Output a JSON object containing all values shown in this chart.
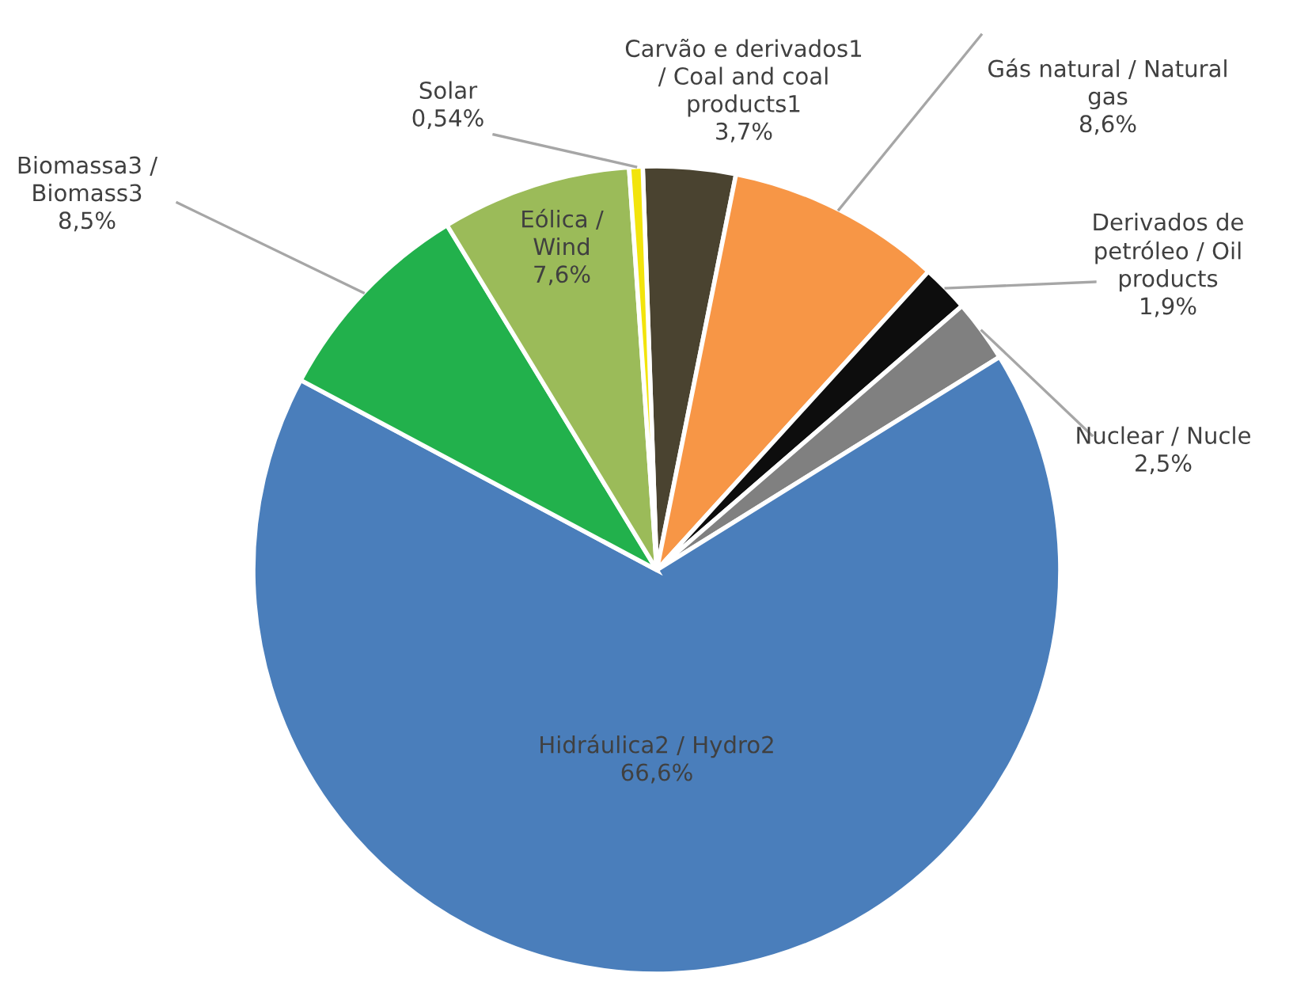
{
  "chart_data": {
    "type": "pie",
    "categories": [
      "Carvão e derivados1\n/ Coal and coal\nproducts1",
      "Gás natural / Natural\ngas",
      "Derivados de\npetróleo / Oil\nproducts",
      "Nuclear / Nucle",
      "Hidráulica2 / Hydro2",
      "Biomassa3 /\nBiomass3",
      "Eólica /\nWind",
      "Solar"
    ],
    "values": [
      3.7,
      8.6,
      1.9,
      2.5,
      66.6,
      8.5,
      7.6,
      0.54
    ],
    "value_labels": [
      "3,7%",
      "8,6%",
      "1,9%",
      "2,5%",
      "66,6%",
      "8,5%",
      "7,6%",
      "0,54%"
    ],
    "colors": [
      "#4a4330",
      "#f79646",
      "#0d0d0d",
      "#808080",
      "#4a7ebb",
      "#22b14c",
      "#9bbb59",
      "#f2e40c"
    ]
  }
}
